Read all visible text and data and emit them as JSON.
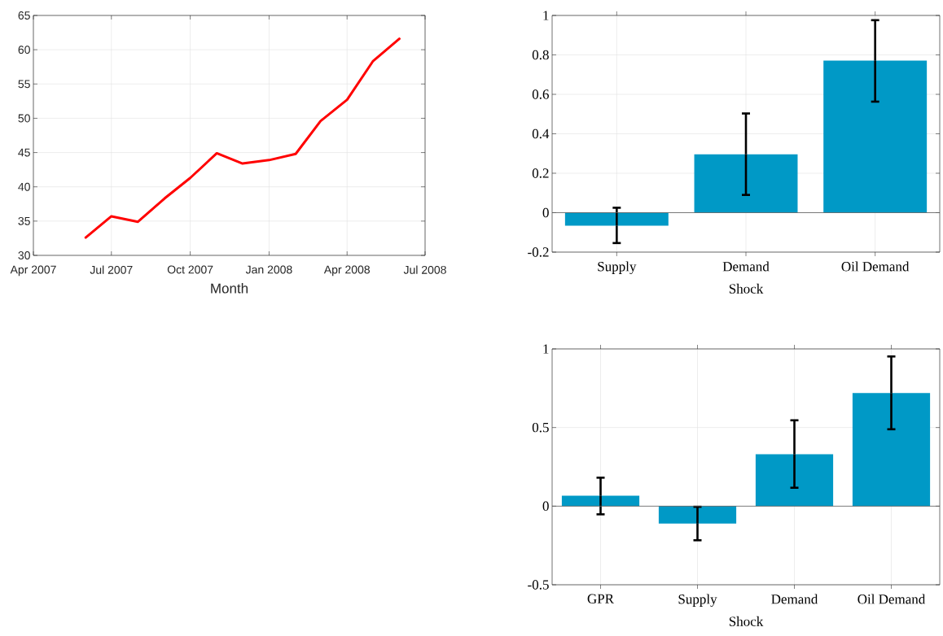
{
  "chart_data": [
    {
      "type": "line",
      "xlabel": "Month",
      "x": [
        "2007-06",
        "2007-07",
        "2007-08",
        "2007-09",
        "2007-10",
        "2007-11",
        "2007-12",
        "2008-01",
        "2008-02",
        "2008-03",
        "2008-04",
        "2008-05",
        "2008-06"
      ],
      "values": [
        32.6,
        35.7,
        34.9,
        38.3,
        41.3,
        44.9,
        43.4,
        43.9,
        44.8,
        49.6,
        52.7,
        58.3,
        61.6
      ],
      "color": "#ff0000",
      "xlim": [
        "2007-04",
        "2008-07"
      ],
      "xticks": [
        {
          "value": "2007-04",
          "label": "Apr 2007"
        },
        {
          "value": "2007-07",
          "label": "Jul 2007"
        },
        {
          "value": "2007-10",
          "label": "Oct 2007"
        },
        {
          "value": "2008-01",
          "label": "Jan 2008"
        },
        {
          "value": "2008-04",
          "label": "Apr 2008"
        },
        {
          "value": "2008-07",
          "label": "Jul 2008"
        }
      ],
      "ylim": [
        30,
        65
      ],
      "yticks": [
        30,
        35,
        40,
        45,
        50,
        55,
        60,
        65
      ],
      "grid": true
    },
    {
      "type": "bar",
      "xlabel": "Shock",
      "categories": [
        "Supply",
        "Demand",
        "Oil Demand"
      ],
      "values": [
        -0.066,
        0.296,
        0.771
      ],
      "errors": [
        [
          -0.154,
          0.025
        ],
        [
          0.09,
          0.503
        ],
        [
          0.563,
          0.976
        ]
      ],
      "color": "#0099c6",
      "ylim": [
        -0.2,
        1
      ],
      "yticks": [
        -0.2,
        0,
        0.2,
        0.4,
        0.6,
        0.8,
        1
      ],
      "grid": true
    },
    {
      "type": "bar",
      "xlabel": "Shock",
      "categories": [
        "GPR",
        "Supply",
        "Demand",
        "Oil Demand"
      ],
      "values": [
        0.067,
        -0.111,
        0.33,
        0.719
      ],
      "errors": [
        [
          -0.052,
          0.181
        ],
        [
          -0.217,
          -0.004
        ],
        [
          0.117,
          0.546
        ],
        [
          0.489,
          0.952
        ]
      ],
      "color": "#0099c6",
      "ylim": [
        -0.5,
        1
      ],
      "yticks": [
        -0.5,
        0,
        0.5,
        1
      ],
      "grid": true
    }
  ]
}
